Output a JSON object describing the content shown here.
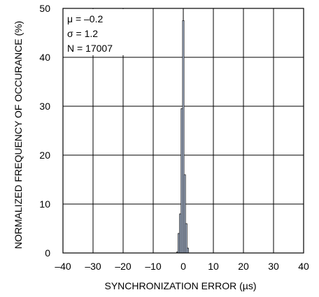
{
  "chart_data": {
    "type": "bar",
    "title": "",
    "xlabel": "SYNCHRONIZATION ERROR (µs)",
    "ylabel": "NORMALIZED FREQUENCY OF OCCURANCE (%)",
    "xlim": [
      -40,
      40
    ],
    "ylim": [
      0,
      50
    ],
    "xticks": [
      -40,
      -30,
      -20,
      -10,
      0,
      10,
      20,
      30,
      40
    ],
    "yticks": [
      0,
      10,
      20,
      30,
      40,
      50
    ],
    "xtick_labels": [
      "–40",
      "–30",
      "–20",
      "–10",
      "0",
      "10",
      "20",
      "30",
      "40"
    ],
    "ytick_labels": [
      "0",
      "10",
      "20",
      "30",
      "40",
      "50"
    ],
    "grid": true,
    "bin_width": 0.5,
    "bins": [
      {
        "x": -2.0,
        "value": 0.2
      },
      {
        "x": -1.5,
        "value": 4.0
      },
      {
        "x": -1.0,
        "value": 8.0
      },
      {
        "x": -0.5,
        "value": 29.5
      },
      {
        "x": 0.0,
        "value": 47.5
      },
      {
        "x": 0.5,
        "value": 16.0
      },
      {
        "x": 1.0,
        "value": 6.0
      },
      {
        "x": 1.5,
        "value": 1.0
      }
    ],
    "annotation": [
      "μ = –0.2",
      "σ = 1.2",
      "N = 17007"
    ]
  },
  "colors": {
    "bar_fill": "#b4c4df",
    "bar_stroke": "#1a1a1a",
    "grid": "#000000",
    "background": "#ffffff"
  }
}
